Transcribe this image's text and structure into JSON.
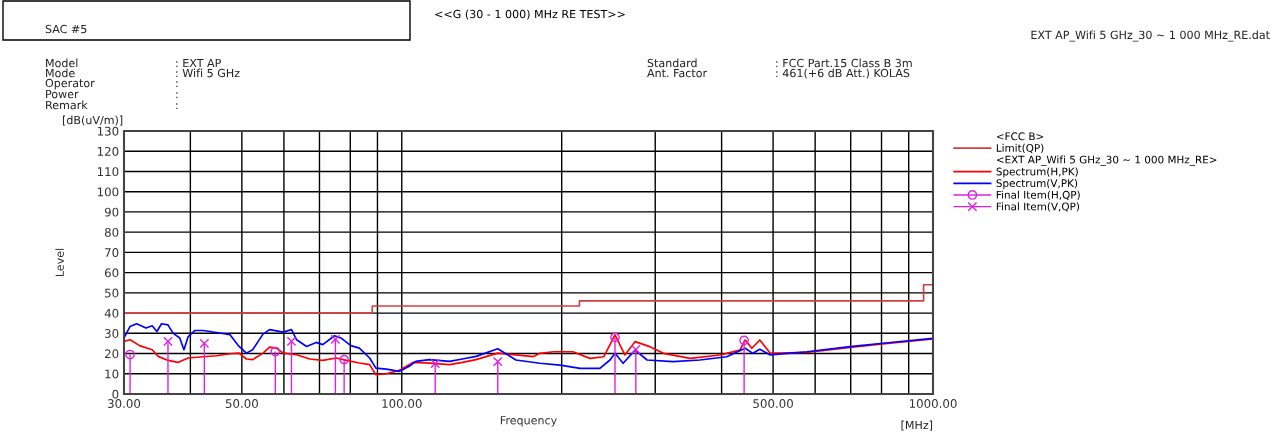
{
  "chart_data": {
    "type": "line",
    "title": "<<G (30 - 1 000) MHz RE TEST>>",
    "xlabel": "Frequency",
    "ylabel": "Level",
    "annotations": [
      "SAC #5",
      "EXT AP_Wifi 5 GHz_30 ~ 1 000 MHz_RE.dat",
      "Model",
      ": EXT AP",
      "Mode",
      ": Wifi 5 GHz",
      "Operator",
      ":",
      "Power",
      ":",
      "Remark",
      ":",
      "Standard",
      ": FCC Part.15 Class B 3m",
      "Ant. Factor",
      ": 461(+6 dB Att.) KOLAS",
      "[dB(uV/m)]",
      "[MHz]",
      "<FCC B>",
      "<EXT AP_Wifi 5 GHz_30 ~ 1 000 MHz_RE>"
    ],
    "log": "x",
    "grid": true,
    "legend": "right",
    "xlim": [
      30,
      1000
    ],
    "ylim": [
      0,
      130
    ],
    "xticks": [
      {
        "value": 30,
        "label": "30.00"
      },
      {
        "value": 40,
        "label": null
      },
      {
        "value": 50,
        "label": "50.00"
      },
      {
        "value": 60,
        "label": null
      },
      {
        "value": 70,
        "label": null
      },
      {
        "value": 80,
        "label": null
      },
      {
        "value": 90,
        "label": null
      },
      {
        "value": 100,
        "label": "100.00"
      },
      {
        "value": 200,
        "label": null
      },
      {
        "value": 300,
        "label": null
      },
      {
        "value": 400,
        "label": null
      },
      {
        "value": 500,
        "label": "500.00"
      },
      {
        "value": 600,
        "label": null
      },
      {
        "value": 700,
        "label": null
      },
      {
        "value": 800,
        "label": null
      },
      {
        "value": 900,
        "label": null
      },
      {
        "value": 1000,
        "label": "1000.00"
      }
    ],
    "yticks": [
      0,
      10,
      20,
      30,
      40,
      50,
      60,
      70,
      80,
      90,
      100,
      110,
      120,
      130
    ],
    "series": [
      {
        "name": "Limit(QP)",
        "color": "#d04040",
        "x": [
          30,
          88,
          88,
          216,
          216,
          960,
          960,
          1000
        ],
        "values": [
          40,
          40,
          43.5,
          43.5,
          46,
          46,
          54,
          54
        ]
      },
      {
        "name": "Spectrum(H,PK)",
        "color": "#ff0000",
        "x": [
          30,
          30.8,
          32.1,
          33.9,
          34.8,
          36.3,
          37.9,
          39.6,
          41.7,
          44.8,
          47.5,
          49.4,
          51,
          52.4,
          54.8,
          56.4,
          58.1,
          59.8,
          63.4,
          67.1,
          71.0,
          75.3,
          78.7,
          83.2,
          87.0,
          89.4,
          93.5,
          99,
          105,
          112.8,
          123,
          130,
          138,
          151.6,
          177,
          182,
          193,
          210,
          226,
          240,
          252,
          263,
          275,
          293,
          311,
          349,
          397,
          433,
          443,
          456,
          472,
          494,
          579,
          698,
          805,
          1000
        ],
        "values": [
          26.0,
          26.8,
          23.9,
          21.9,
          18.6,
          16.6,
          15.6,
          17.8,
          18.3,
          18.9,
          19.9,
          20.2,
          17.3,
          17.0,
          20.2,
          23.2,
          22.7,
          20.2,
          19.4,
          17.3,
          16.6,
          17.8,
          16.6,
          15.3,
          14.5,
          9.5,
          10.0,
          11.7,
          15.6,
          15.3,
          14.5,
          15.6,
          17.0,
          20.2,
          18.5,
          20.1,
          20.9,
          20.9,
          17.6,
          18.4,
          29.2,
          19.3,
          25.9,
          23.4,
          20.1,
          17.6,
          19.3,
          21.7,
          26.7,
          22.6,
          26.7,
          20.1,
          20.6,
          23.0,
          24.8,
          27.2
        ]
      },
      {
        "name": "Spectrum(V,PK)",
        "color": "#0000ff",
        "x": [
          30,
          30.8,
          31.7,
          33.0,
          33.9,
          34.6,
          35.3,
          36.3,
          37.1,
          38.2,
          38.9,
          39.6,
          40.8,
          42.3,
          44.8,
          47.5,
          49.4,
          51,
          52.4,
          54.8,
          56.4,
          59.8,
          62.0,
          63.4,
          66.2,
          69.0,
          71.0,
          74.7,
          76.8,
          80.2,
          83.2,
          87.0,
          89.4,
          93.5,
          99,
          103.3,
          106.3,
          112.8,
          123,
          130,
          138,
          151.6,
          164,
          182,
          198.6,
          216.6,
          236,
          246.6,
          252,
          261,
          274.9,
          289.6,
          324,
          364,
          409,
          443,
          458,
          472,
          494,
          579,
          698,
          805,
          1000
        ],
        "values": [
          27.7,
          33.4,
          34.7,
          32.6,
          33.7,
          30.9,
          34.7,
          34.2,
          30.1,
          27.7,
          21.9,
          28.2,
          31.4,
          31.4,
          30.4,
          29.3,
          23.5,
          20.2,
          21.9,
          29.6,
          31.8,
          30.6,
          31.8,
          26.8,
          23.5,
          25.5,
          24.4,
          28.8,
          27.7,
          23.9,
          22.7,
          17.8,
          12.8,
          12.3,
          11.2,
          13.7,
          16.1,
          17.0,
          16.1,
          17.3,
          18.6,
          22.4,
          16.8,
          15.2,
          14.3,
          12.7,
          12.7,
          16.8,
          20.1,
          15.2,
          21.7,
          16.8,
          16.0,
          16.8,
          18.4,
          22.6,
          20.1,
          22.1,
          19.3,
          20.9,
          23.4,
          25.1,
          27.5
        ]
      },
      {
        "name": "Final Item(H,QP)",
        "type": "lollipop",
        "color": "#e020e0",
        "marker": "circle",
        "x": [
          30.8,
          57.8,
          77.9,
          252,
          441
        ],
        "values": [
          19.5,
          21,
          17,
          28,
          26.5
        ]
      },
      {
        "name": "Final Item(V,QP)",
        "type": "lollipop",
        "color": "#e020e0",
        "marker": "cross",
        "x": [
          36.3,
          42.5,
          62.0,
          75.0,
          115.6,
          151.6,
          275.8
        ],
        "values": [
          26,
          25,
          26,
          27,
          15,
          16,
          22
        ]
      }
    ]
  }
}
